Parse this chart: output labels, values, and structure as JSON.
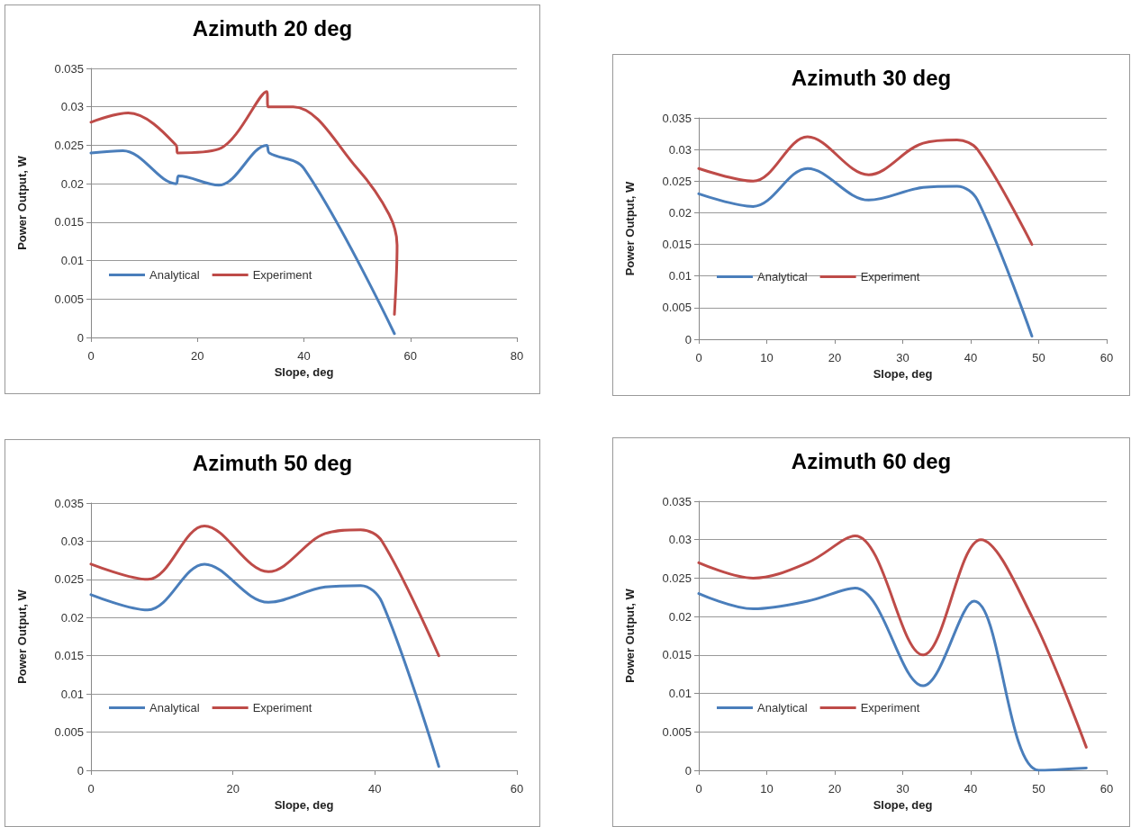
{
  "chart_data": [
    {
      "type": "line",
      "title": "Azimuth 20 deg",
      "xlabel": "Slope, deg",
      "ylabel": "Power Output, W",
      "xlim": [
        0,
        80
      ],
      "xticks": [
        0,
        20,
        40,
        60,
        80
      ],
      "ylim": [
        0,
        0.035
      ],
      "yticks": [
        0,
        0.005,
        0.01,
        0.015,
        0.02,
        0.025,
        0.03,
        0.035
      ],
      "grid": "y",
      "legend": "bottom left",
      "marker": "none",
      "line_style": "solid",
      "series": [
        {
          "name": "Analytical",
          "color": "#4a7ebb",
          "x": [
            0,
            6,
            16,
            16.5,
            24,
            33,
            33.5,
            40,
            57
          ],
          "values": [
            0.024,
            0.0243,
            0.02,
            0.021,
            0.0198,
            0.025,
            0.024,
            0.022,
            0.0005
          ]
        },
        {
          "name": "Experiment",
          "color": "#be4b48",
          "x": [
            0,
            7,
            16,
            16.3,
            24,
            33,
            33.3,
            38,
            50,
            56,
            57.5,
            57
          ],
          "values": [
            0.028,
            0.0292,
            0.025,
            0.024,
            0.0245,
            0.032,
            0.03,
            0.03,
            0.022,
            0.016,
            0.012,
            0.003
          ]
        }
      ]
    },
    {
      "type": "line",
      "title": "Azimuth 30 deg",
      "xlabel": "Slope, deg",
      "ylabel": "Power Output, W",
      "xlim": [
        0,
        60
      ],
      "xticks": [
        0,
        10,
        20,
        30,
        40,
        50,
        60
      ],
      "ylim": [
        0,
        0.035
      ],
      "yticks": [
        0,
        0.005,
        0.01,
        0.015,
        0.02,
        0.025,
        0.03,
        0.035
      ],
      "grid": "y",
      "legend": "bottom left",
      "marker": "none",
      "line_style": "solid",
      "series": [
        {
          "name": "Analytical",
          "color": "#4a7ebb",
          "x": [
            0,
            8,
            16,
            25,
            33,
            38,
            41,
            49
          ],
          "values": [
            0.023,
            0.021,
            0.027,
            0.022,
            0.024,
            0.0242,
            0.022,
            0.0005
          ]
        },
        {
          "name": "Experiment",
          "color": "#be4b48",
          "x": [
            0,
            8,
            16,
            25,
            33,
            38,
            41,
            49
          ],
          "values": [
            0.027,
            0.025,
            0.032,
            0.026,
            0.031,
            0.0315,
            0.03,
            0.015
          ]
        }
      ]
    },
    {
      "type": "line",
      "title": "Azimuth 50 deg",
      "xlabel": "Slope, deg",
      "ylabel": "Power Output, W",
      "xlim": [
        0,
        60
      ],
      "xticks": [
        0,
        20,
        40,
        60
      ],
      "ylim": [
        0,
        0.035
      ],
      "yticks": [
        0,
        0.005,
        0.01,
        0.015,
        0.02,
        0.025,
        0.03,
        0.035
      ],
      "grid": "y",
      "legend": "bottom left",
      "marker": "none",
      "line_style": "solid",
      "series": [
        {
          "name": "Analytical",
          "color": "#4a7ebb",
          "x": [
            0,
            8,
            16,
            25,
            33,
            38,
            41,
            49
          ],
          "values": [
            0.023,
            0.021,
            0.027,
            0.022,
            0.024,
            0.0242,
            0.022,
            0.0005
          ]
        },
        {
          "name": "Experiment",
          "color": "#be4b48",
          "x": [
            0,
            8,
            16,
            25,
            33,
            38,
            41,
            49
          ],
          "values": [
            0.027,
            0.025,
            0.032,
            0.026,
            0.031,
            0.0315,
            0.03,
            0.015
          ]
        }
      ]
    },
    {
      "type": "line",
      "title": "Azimuth 60 deg",
      "xlabel": "Slope, deg",
      "ylabel": "Power Output, W",
      "xlim": [
        0,
        60
      ],
      "xticks": [
        0,
        10,
        20,
        30,
        40,
        50,
        60
      ],
      "ylim": [
        0,
        0.035
      ],
      "yticks": [
        0,
        0.005,
        0.01,
        0.015,
        0.02,
        0.025,
        0.03,
        0.035
      ],
      "grid": "y",
      "legend": "bottom left",
      "marker": "none",
      "line_style": "solid",
      "series": [
        {
          "name": "Analytical",
          "color": "#4a7ebb",
          "x": [
            0,
            8,
            16,
            23,
            33,
            40.5,
            50,
            57
          ],
          "values": [
            0.023,
            0.021,
            0.022,
            0.0237,
            0.011,
            0.022,
            0,
            0.0003
          ]
        },
        {
          "name": "Experiment",
          "color": "#be4b48",
          "x": [
            0,
            8,
            16,
            23,
            33,
            41.5,
            49,
            57
          ],
          "values": [
            0.027,
            0.025,
            0.027,
            0.0305,
            0.015,
            0.03,
            0.02,
            0.003
          ]
        }
      ]
    }
  ]
}
